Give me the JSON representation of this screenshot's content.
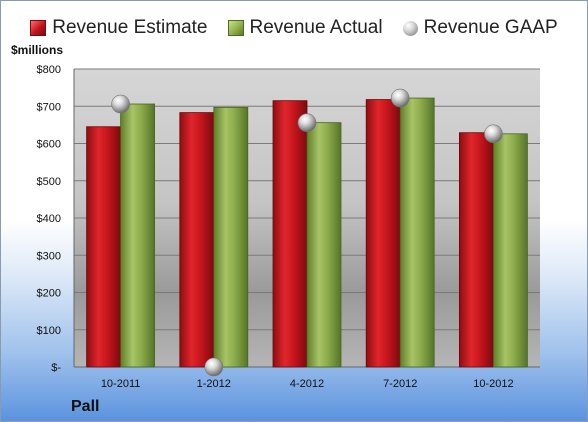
{
  "legend": {
    "estimate": "Revenue Estimate",
    "actual": "Revenue Actual",
    "gaap": "Revenue GAAP"
  },
  "company": "Pall",
  "unit_label": "$millions",
  "colors": {
    "estimate": "#c0141c",
    "actual": "#8fb04a",
    "gaap": "#a8a8a8",
    "plot_background": "#c9c9c9"
  },
  "chart_data": {
    "type": "bar",
    "title": "",
    "xlabel": "",
    "ylabel": "$millions",
    "ylim": [
      0,
      800
    ],
    "yticks": [
      {
        "value": 0,
        "label": "$-"
      },
      {
        "value": 100,
        "label": "$100"
      },
      {
        "value": 200,
        "label": "$200"
      },
      {
        "value": 300,
        "label": "$300"
      },
      {
        "value": 400,
        "label": "$400"
      },
      {
        "value": 500,
        "label": "$500"
      },
      {
        "value": 600,
        "label": "$600"
      },
      {
        "value": 700,
        "label": "$700"
      },
      {
        "value": 800,
        "label": "$800"
      }
    ],
    "grid": true,
    "legend_position": "top",
    "categories": [
      "10-2011",
      "1-2012",
      "4-2012",
      "7-2012",
      "10-2012"
    ],
    "series": [
      {
        "name": "Revenue Estimate",
        "kind": "bar",
        "values": [
          645,
          683,
          715,
          718,
          629
        ]
      },
      {
        "name": "Revenue Actual",
        "kind": "bar",
        "values": [
          706,
          697,
          656,
          722,
          626
        ]
      },
      {
        "name": "Revenue GAAP",
        "kind": "marker",
        "values": [
          706,
          0,
          656,
          722,
          626
        ]
      }
    ]
  }
}
